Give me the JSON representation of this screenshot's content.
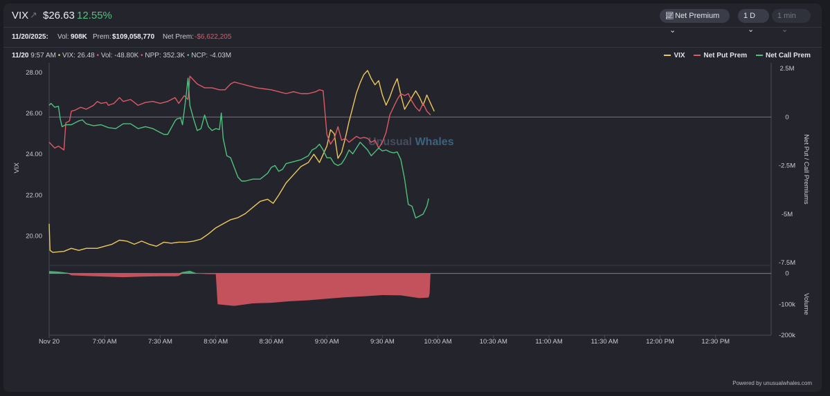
{
  "header": {
    "ticker": "VIX",
    "arrow_icon": "↗",
    "price": "$26.63",
    "change_pct": "12.55%",
    "metric_button": "Net Premium",
    "range_button": "1 D",
    "interval_button": "1 min"
  },
  "summary": {
    "date": "11/20/2025:",
    "vol_label": "Vol:",
    "vol_value": "908K",
    "prem_label": "Prem:",
    "prem_value": "$109,058,770",
    "net_prem_label": "Net Prem:",
    "net_prem_value": "-$6,622,205"
  },
  "tooltip": {
    "datetime": "11/20",
    "time": "9:57 AM",
    "vix": "VIX: 26.48",
    "vol": "Vol: -48.80K",
    "npp": "NPP: 352.3K",
    "ncp": "NCP: -4.03M"
  },
  "footer": "Powered by unusualwhales.com",
  "watermark": {
    "part1": "Unusual",
    "part2": "Whales"
  },
  "colors": {
    "vix": "#f0c95c",
    "put": "#e05a66",
    "call": "#4fc37d",
    "bg": "#23242c"
  },
  "chart_data": {
    "type": "line",
    "legend": [
      "VIX",
      "Net Put Prem",
      "Net Call Prem"
    ],
    "legend_position": "top-right",
    "left_axis": {
      "label": "VIX",
      "min": 18.7,
      "max": 28.2,
      "ticks": [
        "28.00",
        "26.00",
        "24.00",
        "22.00",
        "20.00"
      ],
      "tick_values": [
        28,
        26,
        24,
        22,
        20
      ]
    },
    "right_axis": {
      "label": "Net Put / Call Premiums",
      "min": -7.5,
      "max": 2.5,
      "ticks": [
        "2.5M",
        "0",
        "-2.5M",
        "-5M",
        "-7.5M"
      ],
      "tick_values": [
        2.5,
        0,
        -2.5,
        -5,
        -7.5
      ],
      "units": "M"
    },
    "volume_axis": {
      "label": "Volume",
      "min": -200,
      "max": 15,
      "ticks": [
        "0",
        "-100k",
        "-200k"
      ],
      "tick_values": [
        0,
        -100,
        -200
      ],
      "units": "k"
    },
    "x_axis": {
      "start_minute": 0,
      "end_minute": 390,
      "ticks": [
        {
          "m": 0,
          "label": "Nov 20"
        },
        {
          "m": 30,
          "label": "7:00 AM"
        },
        {
          "m": 60,
          "label": "7:30 AM"
        },
        {
          "m": 90,
          "label": "8:00 AM"
        },
        {
          "m": 120,
          "label": "8:30 AM"
        },
        {
          "m": 150,
          "label": "9:00 AM"
        },
        {
          "m": 180,
          "label": "9:30 AM"
        },
        {
          "m": 210,
          "label": "10:00 AM"
        },
        {
          "m": 240,
          "label": "10:30 AM"
        },
        {
          "m": 270,
          "label": "11:00 AM"
        },
        {
          "m": 300,
          "label": "11:30 AM"
        },
        {
          "m": 330,
          "label": "12:00 PM"
        },
        {
          "m": 360,
          "label": "12:30 PM"
        }
      ]
    },
    "series": [
      {
        "name": "VIX",
        "axis": "left",
        "points": [
          [
            0,
            20.6
          ],
          [
            0.5,
            19.3
          ],
          [
            2,
            19.2
          ],
          [
            8,
            19.25
          ],
          [
            12,
            19.4
          ],
          [
            16,
            19.3
          ],
          [
            20,
            19.4
          ],
          [
            26,
            19.4
          ],
          [
            30,
            19.5
          ],
          [
            34,
            19.6
          ],
          [
            38,
            19.8
          ],
          [
            42,
            19.75
          ],
          [
            46,
            19.6
          ],
          [
            50,
            19.75
          ],
          [
            54,
            19.6
          ],
          [
            58,
            19.5
          ],
          [
            62,
            19.7
          ],
          [
            66,
            19.65
          ],
          [
            70,
            19.7
          ],
          [
            74,
            19.7
          ],
          [
            78,
            19.75
          ],
          [
            82,
            19.85
          ],
          [
            86,
            20.1
          ],
          [
            90,
            20.4
          ],
          [
            94,
            20.6
          ],
          [
            98,
            20.8
          ],
          [
            102,
            20.9
          ],
          [
            106,
            21.1
          ],
          [
            110,
            21.4
          ],
          [
            114,
            21.7
          ],
          [
            118,
            21.8
          ],
          [
            121,
            21.6
          ],
          [
            124,
            22.0
          ],
          [
            128,
            22.6
          ],
          [
            132,
            23.0
          ],
          [
            136,
            23.4
          ],
          [
            140,
            23.6
          ],
          [
            143,
            24.0
          ],
          [
            146,
            23.6
          ],
          [
            150,
            24.4
          ],
          [
            152,
            25.2
          ],
          [
            154,
            25.0
          ],
          [
            156,
            23.8
          ],
          [
            158,
            24.1
          ],
          [
            160,
            24.8
          ],
          [
            162,
            25.6
          ],
          [
            164,
            26.3
          ],
          [
            166,
            27.0
          ],
          [
            168,
            27.5
          ],
          [
            170,
            27.9
          ],
          [
            172,
            28.1
          ],
          [
            174,
            27.7
          ],
          [
            176,
            27.4
          ],
          [
            178,
            27.6
          ],
          [
            180,
            26.9
          ],
          [
            182,
            26.4
          ],
          [
            184,
            26.8
          ],
          [
            186,
            27.3
          ],
          [
            188,
            27.7
          ],
          [
            190,
            26.9
          ],
          [
            192,
            26.2
          ],
          [
            194,
            26.5
          ],
          [
            196,
            26.8
          ],
          [
            198,
            27.1
          ],
          [
            200,
            26.8
          ],
          [
            202,
            26.4
          ],
          [
            204,
            26.9
          ],
          [
            206,
            26.5
          ],
          [
            208,
            26.1
          ]
        ]
      },
      {
        "name": "Net Put Prem",
        "axis": "right",
        "points": [
          [
            0,
            -1.3
          ],
          [
            1,
            -1.4
          ],
          [
            3,
            -1.6
          ],
          [
            5,
            -1.5
          ],
          [
            8,
            -1.7
          ],
          [
            9,
            -0.3
          ],
          [
            11,
            -0.2
          ],
          [
            12,
            0.3
          ],
          [
            14,
            0.35
          ],
          [
            17,
            0.5
          ],
          [
            20,
            0.4
          ],
          [
            24,
            0.6
          ],
          [
            26,
            0.8
          ],
          [
            28,
            0.7
          ],
          [
            31,
            0.75
          ],
          [
            32,
            0.6
          ],
          [
            35,
            0.7
          ],
          [
            38,
            1.0
          ],
          [
            40,
            0.8
          ],
          [
            44,
            0.9
          ],
          [
            48,
            0.6
          ],
          [
            52,
            0.75
          ],
          [
            56,
            0.8
          ],
          [
            60,
            0.7
          ],
          [
            64,
            0.8
          ],
          [
            68,
            1.0
          ],
          [
            70,
            0.7
          ],
          [
            73,
            1.1
          ],
          [
            75,
            0.9
          ],
          [
            76,
            2.1
          ],
          [
            78,
            1.9
          ],
          [
            80,
            1.7
          ],
          [
            82,
            1.6
          ],
          [
            84,
            1.5
          ],
          [
            88,
            1.5
          ],
          [
            92,
            1.4
          ],
          [
            95,
            1.4
          ],
          [
            98,
            1.7
          ],
          [
            100,
            1.8
          ],
          [
            104,
            1.7
          ],
          [
            108,
            1.6
          ],
          [
            112,
            1.5
          ],
          [
            116,
            1.45
          ],
          [
            120,
            1.4
          ],
          [
            124,
            1.3
          ],
          [
            128,
            1.2
          ],
          [
            132,
            1.3
          ],
          [
            136,
            1.2
          ],
          [
            140,
            1.2
          ],
          [
            144,
            1.3
          ],
          [
            146,
            1.4
          ],
          [
            148,
            1.35
          ],
          [
            150,
            -0.9
          ],
          [
            152,
            -1.4
          ],
          [
            154,
            -1.1
          ],
          [
            156,
            -0.5
          ],
          [
            158,
            -1.2
          ],
          [
            160,
            -1.1
          ],
          [
            162,
            -1.3
          ],
          [
            164,
            -1.15
          ],
          [
            166,
            -1.0
          ],
          [
            168,
            -1.1
          ],
          [
            170,
            -1.05
          ],
          [
            172,
            -1.1
          ],
          [
            174,
            -1.3
          ],
          [
            176,
            -1.2
          ],
          [
            178,
            -1.6
          ],
          [
            180,
            -1.3
          ],
          [
            182,
            -0.8
          ],
          [
            184,
            0.1
          ],
          [
            186,
            0.5
          ],
          [
            188,
            0.9
          ],
          [
            190,
            1.2
          ],
          [
            192,
            1.1
          ],
          [
            194,
            1.2
          ],
          [
            196,
            0.8
          ],
          [
            198,
            0.5
          ],
          [
            200,
            0.3
          ],
          [
            202,
            0.7
          ],
          [
            204,
            0.3
          ],
          [
            206,
            0.1
          ]
        ]
      },
      {
        "name": "Net Call Prem",
        "axis": "right",
        "points": [
          [
            0,
            0.6
          ],
          [
            1,
            0.7
          ],
          [
            3,
            0.5
          ],
          [
            5,
            0.55
          ],
          [
            6,
            -0.1
          ],
          [
            7,
            -0.5
          ],
          [
            9,
            -0.4
          ],
          [
            12,
            -0.4
          ],
          [
            16,
            -0.2
          ],
          [
            18,
            -0.15
          ],
          [
            20,
            -0.35
          ],
          [
            24,
            -0.45
          ],
          [
            28,
            -0.4
          ],
          [
            32,
            -0.55
          ],
          [
            36,
            -0.6
          ],
          [
            40,
            -0.35
          ],
          [
            44,
            -0.35
          ],
          [
            48,
            -0.6
          ],
          [
            52,
            -0.5
          ],
          [
            56,
            -0.6
          ],
          [
            60,
            -0.8
          ],
          [
            62,
            -0.9
          ],
          [
            64,
            -0.9
          ],
          [
            68,
            -0.2
          ],
          [
            69,
            -0.1
          ],
          [
            71,
            -0.05
          ],
          [
            72,
            -0.4
          ],
          [
            74,
            1.1
          ],
          [
            75,
            2.0
          ],
          [
            76,
            0.6
          ],
          [
            78,
            -0.1
          ],
          [
            80,
            -0.7
          ],
          [
            82,
            -0.6
          ],
          [
            84,
            0.1
          ],
          [
            86,
            -0.5
          ],
          [
            88,
            -0.7
          ],
          [
            90,
            -0.6
          ],
          [
            92,
            -0.65
          ],
          [
            93,
            0.2
          ],
          [
            94,
            -1.1
          ],
          [
            96,
            -2.0
          ],
          [
            98,
            -2.1
          ],
          [
            100,
            -2.6
          ],
          [
            102,
            -3.1
          ],
          [
            104,
            -3.3
          ],
          [
            106,
            -3.3
          ],
          [
            110,
            -3.2
          ],
          [
            114,
            -3.2
          ],
          [
            118,
            -2.9
          ],
          [
            120,
            -2.6
          ],
          [
            122,
            -2.5
          ],
          [
            124,
            -2.8
          ],
          [
            126,
            -2.7
          ],
          [
            128,
            -2.4
          ],
          [
            132,
            -2.3
          ],
          [
            136,
            -2.2
          ],
          [
            140,
            -2.0
          ],
          [
            142,
            -1.7
          ],
          [
            144,
            -1.6
          ],
          [
            146,
            -1.4
          ],
          [
            148,
            -1.7
          ],
          [
            150,
            -2.1
          ],
          [
            152,
            -2.1
          ],
          [
            154,
            -2.4
          ],
          [
            156,
            -2.5
          ],
          [
            158,
            -2.4
          ],
          [
            160,
            -2.1
          ],
          [
            162,
            -1.7
          ],
          [
            164,
            -1.9
          ],
          [
            166,
            -1.6
          ],
          [
            168,
            -1.3
          ],
          [
            170,
            -1.5
          ],
          [
            172,
            -1.7
          ],
          [
            174,
            -2.0
          ],
          [
            176,
            -1.8
          ],
          [
            178,
            -1.6
          ],
          [
            180,
            -1.75
          ],
          [
            182,
            -1.7
          ],
          [
            184,
            -1.8
          ],
          [
            186,
            -1.85
          ],
          [
            188,
            -1.8
          ],
          [
            190,
            -2.2
          ],
          [
            192,
            -3.2
          ],
          [
            194,
            -4.5
          ],
          [
            196,
            -4.6
          ],
          [
            198,
            -5.2
          ],
          [
            200,
            -5.1
          ],
          [
            202,
            -5.0
          ],
          [
            204,
            -4.6
          ],
          [
            205,
            -4.2
          ]
        ]
      },
      {
        "name": "Volume",
        "axis": "volume",
        "type": "area",
        "points": [
          [
            0,
            8
          ],
          [
            5,
            6
          ],
          [
            10,
            2
          ],
          [
            12,
            -6
          ],
          [
            20,
            -8
          ],
          [
            30,
            -10
          ],
          [
            40,
            -12
          ],
          [
            50,
            -10
          ],
          [
            60,
            -9
          ],
          [
            68,
            -9
          ],
          [
            70,
            -8
          ],
          [
            72,
            5
          ],
          [
            76,
            9
          ],
          [
            80,
            0
          ],
          [
            86,
            -2
          ],
          [
            90,
            -2
          ],
          [
            91,
            -100
          ],
          [
            100,
            -105
          ],
          [
            110,
            -97
          ],
          [
            120,
            -95
          ],
          [
            130,
            -90
          ],
          [
            140,
            -87
          ],
          [
            150,
            -82
          ],
          [
            160,
            -77
          ],
          [
            170,
            -74
          ],
          [
            180,
            -70
          ],
          [
            190,
            -71
          ],
          [
            200,
            -80
          ],
          [
            205,
            -78
          ],
          [
            205.5,
            -65
          ],
          [
            206,
            0
          ]
        ]
      }
    ]
  }
}
